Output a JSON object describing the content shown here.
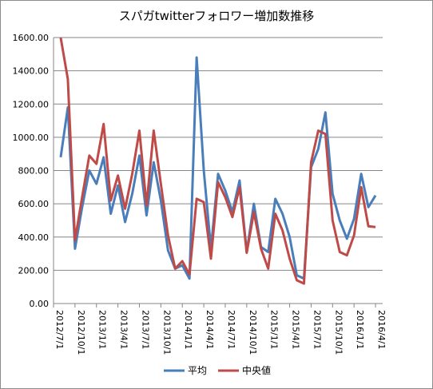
{
  "chart_data": {
    "type": "line",
    "title": "スパガtwitterフォロワー増加数推移",
    "xlabel": "",
    "ylabel": "",
    "ylim": [
      0,
      1600
    ],
    "yticks": [
      "0.00",
      "200.00",
      "400.00",
      "600.00",
      "800.00",
      "1000.00",
      "1200.00",
      "1400.00",
      "1600.00"
    ],
    "xticks": [
      "2012/7/1",
      "2012/10/1",
      "2013/1/1",
      "2013/4/1",
      "2013/7/1",
      "2013/10/1",
      "2014/1/1",
      "2014/4/1",
      "2014/7/1",
      "2014/10/1",
      "2015/1/1",
      "2015/4/1",
      "2015/7/1",
      "2015/10/1",
      "2016/1/1",
      "2016/4/1"
    ],
    "grid": true,
    "legend_position": "bottom",
    "x_start_month": "2012/7",
    "x_end_month": "2016/4",
    "series": [
      {
        "name": "平均",
        "color": "#4a7ebb",
        "values": [
          null,
          880,
          1180,
          330,
          580,
          800,
          720,
          880,
          540,
          710,
          490,
          660,
          890,
          530,
          850,
          620,
          320,
          210,
          230,
          150,
          1480,
          800,
          330,
          780,
          680,
          550,
          740,
          310,
          600,
          340,
          310,
          630,
          540,
          400,
          170,
          150,
          820,
          930,
          1150,
          660,
          500,
          390,
          510,
          780,
          580,
          650
        ]
      },
      {
        "name": "中央値",
        "color": "#be4b48",
        "values": [
          null,
          1600,
          1350,
          380,
          640,
          890,
          840,
          1080,
          620,
          770,
          570,
          780,
          1040,
          590,
          1040,
          720,
          410,
          210,
          255,
          175,
          630,
          610,
          270,
          730,
          640,
          520,
          700,
          305,
          550,
          330,
          210,
          540,
          440,
          270,
          140,
          120,
          850,
          1040,
          1020,
          500,
          310,
          290,
          410,
          700,
          465,
          460
        ]
      }
    ]
  }
}
